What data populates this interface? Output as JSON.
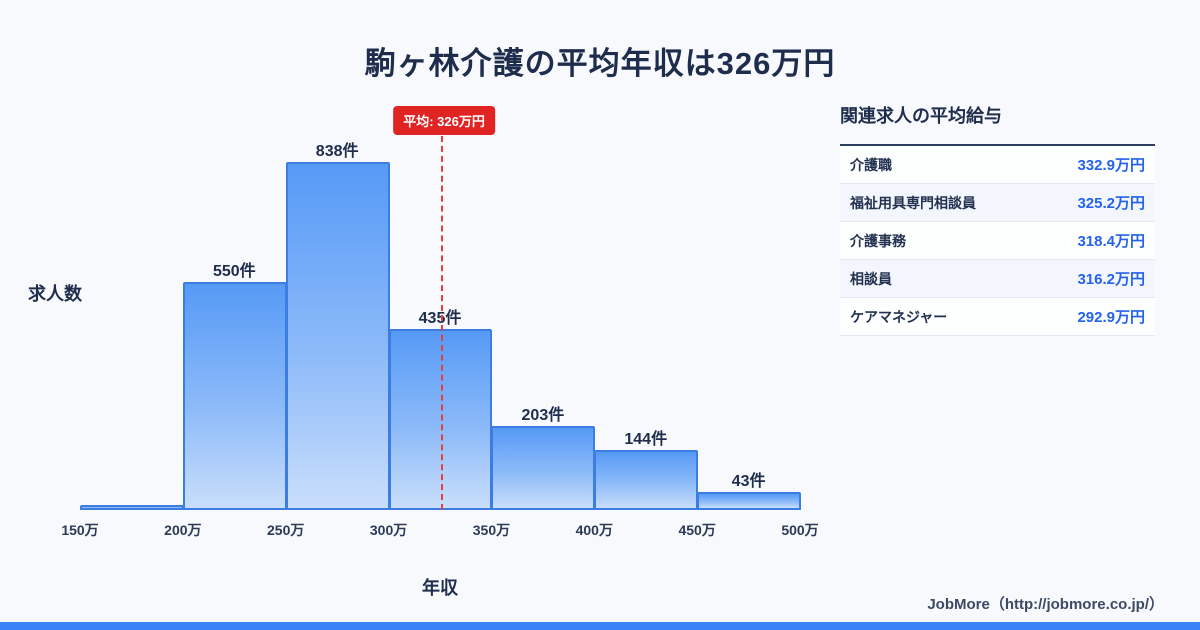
{
  "title": "駒ヶ林介護の平均年収は326万円",
  "chart_data": {
    "type": "bar",
    "title": "駒ヶ林介護の平均年収は326万円",
    "xlabel": "年収",
    "ylabel": "求人数",
    "x_tick_labels": [
      "150万",
      "200万",
      "250万",
      "300万",
      "350万",
      "400万",
      "450万",
      "500万"
    ],
    "x_range": [
      150,
      500
    ],
    "bin_width": 50,
    "categories": [
      "150万-200万",
      "200万-250万",
      "250万-300万",
      "300万-350万",
      "350万-400万",
      "400万-450万",
      "450万-500万"
    ],
    "values": [
      12,
      550,
      838,
      435,
      203,
      144,
      43
    ],
    "bar_labels": [
      "",
      "550件",
      "838件",
      "435件",
      "203件",
      "144件",
      "43件"
    ],
    "average": {
      "value": 326,
      "label": "平均: 326万円"
    },
    "ylim": [
      0,
      900
    ],
    "grid": false,
    "legend": "none"
  },
  "side_panel": {
    "title": "関連求人の平均給与",
    "rows": [
      {
        "label": "介護職",
        "value": "332.9万円"
      },
      {
        "label": "福祉用具専門相談員",
        "value": "325.2万円"
      },
      {
        "label": "介護事務",
        "value": "318.4万円"
      },
      {
        "label": "相談員",
        "value": "316.2万円"
      },
      {
        "label": "ケアマネジャー",
        "value": "292.9万円"
      }
    ]
  },
  "footer": {
    "credit": "JobMore（http://jobmore.co.jp/）"
  },
  "colors": {
    "background": "#f7f9fc",
    "title_text": "#1f2d4d",
    "bar_border": "#3b7de0",
    "bar_gradient_top": "#569af6",
    "bar_gradient_bottom": "#c9defb",
    "average_line": "#e53e3e",
    "average_badge_bg": "#e02424",
    "table_value_text": "#2563eb",
    "brand_bar": "#3b82f6"
  }
}
